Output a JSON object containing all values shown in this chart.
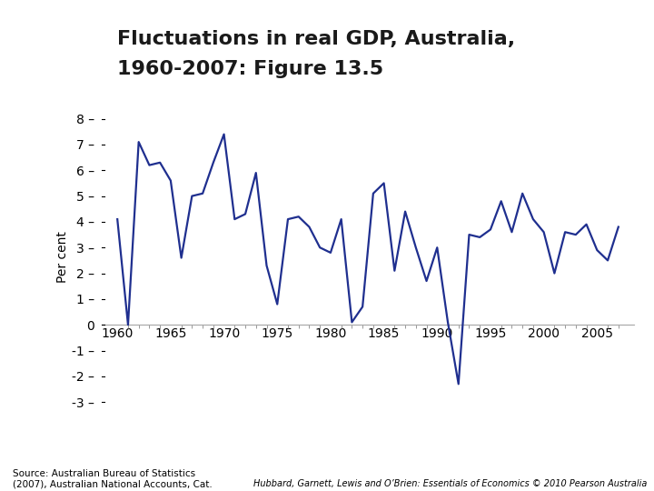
{
  "title_line1": "Fluctuations in real GDP, Australia,",
  "title_line2": "1960-2007: Figure 13.5",
  "title_bg_color": "#F5A000",
  "title_text_color": "#1a1a1a",
  "ylabel": "Per cent",
  "line_color": "#1F2F8F",
  "line_width": 1.6,
  "years": [
    1960,
    1961,
    1962,
    1963,
    1964,
    1965,
    1966,
    1967,
    1968,
    1969,
    1970,
    1971,
    1972,
    1973,
    1974,
    1975,
    1976,
    1977,
    1978,
    1979,
    1980,
    1981,
    1982,
    1983,
    1984,
    1985,
    1986,
    1987,
    1988,
    1989,
    1990,
    1991,
    1992,
    1993,
    1994,
    1995,
    1996,
    1997,
    1998,
    1999,
    2000,
    2001,
    2002,
    2003,
    2004,
    2005,
    2006,
    2007
  ],
  "values": [
    4.1,
    0.0,
    7.1,
    6.2,
    6.3,
    5.6,
    2.6,
    5.0,
    5.1,
    6.3,
    7.4,
    4.1,
    4.3,
    5.9,
    2.3,
    0.8,
    4.1,
    4.2,
    3.8,
    3.0,
    2.8,
    4.1,
    0.1,
    0.7,
    5.1,
    5.5,
    2.1,
    4.4,
    3.0,
    1.7,
    3.0,
    0.1,
    -2.3,
    3.5,
    3.4,
    3.7,
    4.8,
    3.6,
    5.1,
    4.1,
    3.6,
    2.0,
    3.6,
    3.5,
    3.9,
    2.9,
    2.5,
    3.8
  ],
  "ylim": [
    -3.5,
    8.8
  ],
  "yticks": [
    -3,
    -2,
    -1,
    0,
    1,
    2,
    3,
    4,
    5,
    6,
    7,
    8
  ],
  "xlim": [
    1958.5,
    2008.5
  ],
  "xticks": [
    1960,
    1965,
    1970,
    1975,
    1980,
    1985,
    1990,
    1995,
    2000,
    2005
  ],
  "source_text": "Source: Australian Bureau of Statistics\n(2007), Australian National Accounts, Cat.",
  "right_text": "Hubbard, Garnett, Lewis and O’Brien: Essentials of Economics © 2010 Pearson Australia",
  "bg_color": "#FFFFFF",
  "zero_line_color": "#aaaaaa"
}
